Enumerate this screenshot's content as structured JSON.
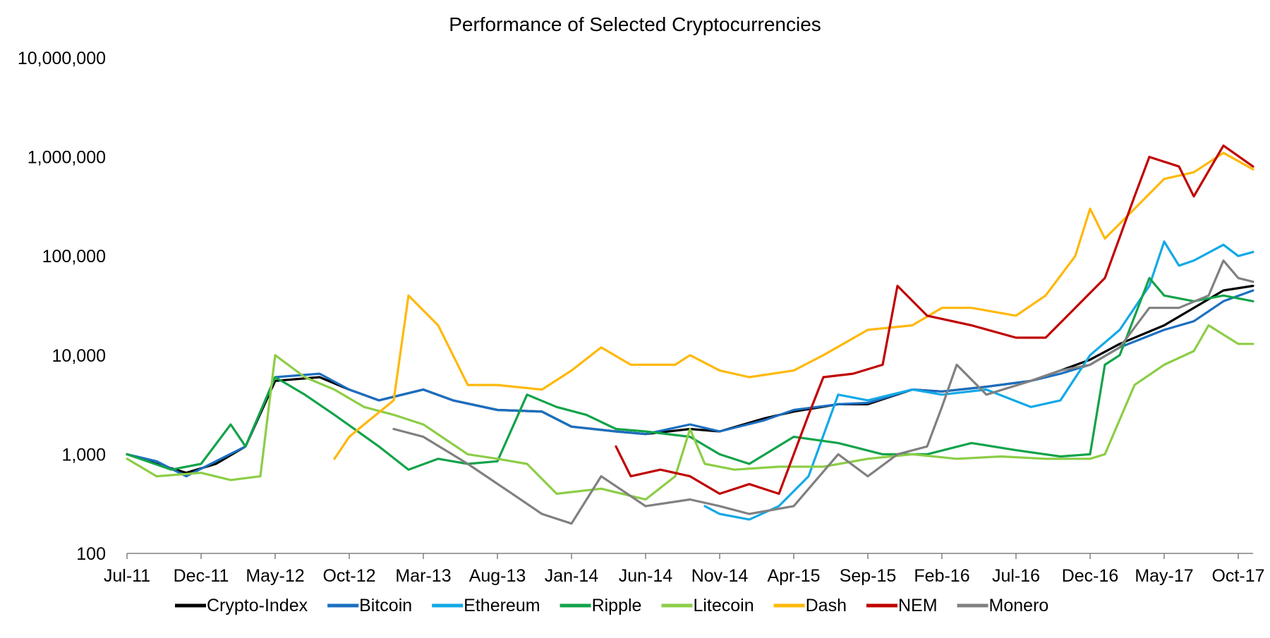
{
  "chart_data": {
    "type": "line",
    "title": "Performance of Selected Cryptocurrencies",
    "xlabel": "",
    "ylabel": "",
    "y_scale": "log",
    "ylim": [
      100,
      10000000
    ],
    "y_ticks": [
      {
        "value": 100,
        "label": "100"
      },
      {
        "value": 1000,
        "label": "1,000"
      },
      {
        "value": 10000,
        "label": "10,000"
      },
      {
        "value": 100000,
        "label": "100,000"
      },
      {
        "value": 1000000,
        "label": "1,000,000"
      },
      {
        "value": 10000000,
        "label": "10,000,000"
      }
    ],
    "xlim": [
      "2011-07",
      "2017-11"
    ],
    "x_ticks": [
      {
        "value": "2011-07",
        "label": "Jul-11"
      },
      {
        "value": "2011-12",
        "label": "Dec-11"
      },
      {
        "value": "2012-05",
        "label": "May-12"
      },
      {
        "value": "2012-10",
        "label": "Oct-12"
      },
      {
        "value": "2013-03",
        "label": "Mar-13"
      },
      {
        "value": "2013-08",
        "label": "Aug-13"
      },
      {
        "value": "2014-01",
        "label": "Jan-14"
      },
      {
        "value": "2014-06",
        "label": "Jun-14"
      },
      {
        "value": "2014-11",
        "label": "Nov-14"
      },
      {
        "value": "2015-04",
        "label": "Apr-15"
      },
      {
        "value": "2015-09",
        "label": "Sep-15"
      },
      {
        "value": "2016-02",
        "label": "Feb-16"
      },
      {
        "value": "2016-07",
        "label": "Jul-16"
      },
      {
        "value": "2016-12",
        "label": "Dec-16"
      },
      {
        "value": "2017-05",
        "label": "May-17"
      },
      {
        "value": "2017-10",
        "label": "Oct-17"
      }
    ],
    "grid": false,
    "legend_position": "bottom",
    "series": [
      {
        "name": "Crypto-Index",
        "color": "#000000",
        "points": [
          [
            "2011-07",
            1000
          ],
          [
            "2011-09",
            800
          ],
          [
            "2011-11",
            650
          ],
          [
            "2012-01",
            800
          ],
          [
            "2012-03",
            1200
          ],
          [
            "2012-05",
            5500
          ],
          [
            "2012-08",
            6000
          ],
          [
            "2012-10",
            4500
          ],
          [
            "2012-12",
            3500
          ],
          [
            "2013-03",
            4500
          ],
          [
            "2013-05",
            3500
          ],
          [
            "2013-08",
            2800
          ],
          [
            "2013-11",
            2700
          ],
          [
            "2014-01",
            1900
          ],
          [
            "2014-04",
            1700
          ],
          [
            "2014-06",
            1600
          ],
          [
            "2014-09",
            1800
          ],
          [
            "2014-11",
            1700
          ],
          [
            "2015-02",
            2300
          ],
          [
            "2015-04",
            2700
          ],
          [
            "2015-07",
            3200
          ],
          [
            "2015-09",
            3200
          ],
          [
            "2015-12",
            4500
          ],
          [
            "2016-02",
            4300
          ],
          [
            "2016-05",
            4800
          ],
          [
            "2016-08",
            5500
          ],
          [
            "2016-10",
            7000
          ],
          [
            "2016-12",
            9000
          ],
          [
            "2017-02",
            13000
          ],
          [
            "2017-05",
            20000
          ],
          [
            "2017-07",
            30000
          ],
          [
            "2017-09",
            45000
          ],
          [
            "2017-11",
            50000
          ]
        ]
      },
      {
        "name": "Bitcoin",
        "color": "#1b6fc0",
        "points": [
          [
            "2011-07",
            1000
          ],
          [
            "2011-09",
            850
          ],
          [
            "2011-11",
            600
          ],
          [
            "2012-01",
            850
          ],
          [
            "2012-03",
            1200
          ],
          [
            "2012-05",
            6000
          ],
          [
            "2012-08",
            6500
          ],
          [
            "2012-10",
            4500
          ],
          [
            "2012-12",
            3500
          ],
          [
            "2013-03",
            4500
          ],
          [
            "2013-05",
            3500
          ],
          [
            "2013-08",
            2800
          ],
          [
            "2013-11",
            2700
          ],
          [
            "2014-01",
            1900
          ],
          [
            "2014-04",
            1700
          ],
          [
            "2014-06",
            1600
          ],
          [
            "2014-09",
            2000
          ],
          [
            "2014-11",
            1700
          ],
          [
            "2015-02",
            2200
          ],
          [
            "2015-04",
            2800
          ],
          [
            "2015-07",
            3200
          ],
          [
            "2015-09",
            3300
          ],
          [
            "2015-12",
            4500
          ],
          [
            "2016-02",
            4300
          ],
          [
            "2016-05",
            4800
          ],
          [
            "2016-08",
            5500
          ],
          [
            "2016-10",
            6500
          ],
          [
            "2016-12",
            8000
          ],
          [
            "2017-02",
            12000
          ],
          [
            "2017-05",
            18000
          ],
          [
            "2017-07",
            22000
          ],
          [
            "2017-09",
            35000
          ],
          [
            "2017-11",
            45000
          ]
        ]
      },
      {
        "name": "Ethereum",
        "color": "#13a9e6",
        "points": [
          [
            "2014-10",
            300
          ],
          [
            "2014-11",
            250
          ],
          [
            "2015-01",
            220
          ],
          [
            "2015-03",
            300
          ],
          [
            "2015-05",
            600
          ],
          [
            "2015-07",
            4000
          ],
          [
            "2015-09",
            3500
          ],
          [
            "2015-12",
            4500
          ],
          [
            "2016-02",
            4000
          ],
          [
            "2016-05",
            4500
          ],
          [
            "2016-08",
            3000
          ],
          [
            "2016-10",
            3500
          ],
          [
            "2016-12",
            10000
          ],
          [
            "2017-02",
            18000
          ],
          [
            "2017-04",
            50000
          ],
          [
            "2017-05",
            140000
          ],
          [
            "2017-06",
            80000
          ],
          [
            "2017-07",
            90000
          ],
          [
            "2017-09",
            130000
          ],
          [
            "2017-10",
            100000
          ],
          [
            "2017-11",
            110000
          ]
        ]
      },
      {
        "name": "Ripple",
        "color": "#12a34a",
        "points": [
          [
            "2011-07",
            1000
          ],
          [
            "2011-10",
            700
          ],
          [
            "2011-12",
            800
          ],
          [
            "2012-02",
            2000
          ],
          [
            "2012-03",
            1200
          ],
          [
            "2012-05",
            6000
          ],
          [
            "2012-07",
            4000
          ],
          [
            "2012-09",
            2500
          ],
          [
            "2012-12",
            1200
          ],
          [
            "2013-02",
            700
          ],
          [
            "2013-04",
            900
          ],
          [
            "2013-06",
            800
          ],
          [
            "2013-08",
            850
          ],
          [
            "2013-10",
            4000
          ],
          [
            "2013-12",
            3000
          ],
          [
            "2014-02",
            2500
          ],
          [
            "2014-04",
            1800
          ],
          [
            "2014-06",
            1700
          ],
          [
            "2014-09",
            1500
          ],
          [
            "2014-11",
            1000
          ],
          [
            "2015-01",
            800
          ],
          [
            "2015-04",
            1500
          ],
          [
            "2015-07",
            1300
          ],
          [
            "2015-10",
            1000
          ],
          [
            "2016-01",
            1000
          ],
          [
            "2016-04",
            1300
          ],
          [
            "2016-07",
            1100
          ],
          [
            "2016-10",
            950
          ],
          [
            "2016-12",
            1000
          ],
          [
            "2017-01",
            8000
          ],
          [
            "2017-02",
            10000
          ],
          [
            "2017-04",
            60000
          ],
          [
            "2017-05",
            40000
          ],
          [
            "2017-07",
            35000
          ],
          [
            "2017-09",
            40000
          ],
          [
            "2017-11",
            35000
          ]
        ]
      },
      {
        "name": "Litecoin",
        "color": "#8ccd46",
        "points": [
          [
            "2011-07",
            900
          ],
          [
            "2011-09",
            600
          ],
          [
            "2011-12",
            650
          ],
          [
            "2012-02",
            550
          ],
          [
            "2012-04",
            600
          ],
          [
            "2012-05",
            10000
          ],
          [
            "2012-07",
            6000
          ],
          [
            "2012-09",
            4500
          ],
          [
            "2012-11",
            3000
          ],
          [
            "2013-01",
            2500
          ],
          [
            "2013-03",
            2000
          ],
          [
            "2013-06",
            1000
          ],
          [
            "2013-08",
            900
          ],
          [
            "2013-10",
            800
          ],
          [
            "2013-12",
            400
          ],
          [
            "2014-03",
            450
          ],
          [
            "2014-06",
            350
          ],
          [
            "2014-08",
            600
          ],
          [
            "2014-09",
            1800
          ],
          [
            "2014-10",
            800
          ],
          [
            "2014-12",
            700
          ],
          [
            "2015-03",
            750
          ],
          [
            "2015-06",
            750
          ],
          [
            "2015-09",
            900
          ],
          [
            "2015-12",
            1000
          ],
          [
            "2016-03",
            900
          ],
          [
            "2016-06",
            950
          ],
          [
            "2016-09",
            900
          ],
          [
            "2016-12",
            900
          ],
          [
            "2017-01",
            1000
          ],
          [
            "2017-03",
            5000
          ],
          [
            "2017-05",
            8000
          ],
          [
            "2017-07",
            11000
          ],
          [
            "2017-08",
            20000
          ],
          [
            "2017-10",
            13000
          ],
          [
            "2017-11",
            13000
          ]
        ]
      },
      {
        "name": "Dash",
        "color": "#ffb80a",
        "points": [
          [
            "2012-09",
            900
          ],
          [
            "2012-10",
            1500
          ],
          [
            "2012-11",
            2000
          ],
          [
            "2013-01",
            3500
          ],
          [
            "2013-02",
            40000
          ],
          [
            "2013-04",
            20000
          ],
          [
            "2013-06",
            5000
          ],
          [
            "2013-08",
            5000
          ],
          [
            "2013-11",
            4500
          ],
          [
            "2014-01",
            7000
          ],
          [
            "2014-03",
            12000
          ],
          [
            "2014-05",
            8000
          ],
          [
            "2014-08",
            8000
          ],
          [
            "2014-09",
            10000
          ],
          [
            "2014-11",
            7000
          ],
          [
            "2015-01",
            6000
          ],
          [
            "2015-04",
            7000
          ],
          [
            "2015-06",
            10000
          ],
          [
            "2015-09",
            18000
          ],
          [
            "2015-12",
            20000
          ],
          [
            "2016-02",
            30000
          ],
          [
            "2016-04",
            30000
          ],
          [
            "2016-07",
            25000
          ],
          [
            "2016-09",
            40000
          ],
          [
            "2016-11",
            100000
          ],
          [
            "2016-12",
            300000
          ],
          [
            "2017-01",
            150000
          ],
          [
            "2017-03",
            300000
          ],
          [
            "2017-05",
            600000
          ],
          [
            "2017-07",
            700000
          ],
          [
            "2017-09",
            1100000
          ],
          [
            "2017-11",
            750000
          ]
        ]
      },
      {
        "name": "NEM",
        "color": "#c00000",
        "points": [
          [
            "2014-04",
            1200
          ],
          [
            "2014-05",
            600
          ],
          [
            "2014-07",
            700
          ],
          [
            "2014-09",
            600
          ],
          [
            "2014-11",
            400
          ],
          [
            "2015-01",
            500
          ],
          [
            "2015-03",
            400
          ],
          [
            "2015-05",
            2500
          ],
          [
            "2015-06",
            6000
          ],
          [
            "2015-08",
            6500
          ],
          [
            "2015-10",
            8000
          ],
          [
            "2015-11",
            50000
          ],
          [
            "2016-01",
            25000
          ],
          [
            "2016-04",
            20000
          ],
          [
            "2016-07",
            15000
          ],
          [
            "2016-09",
            15000
          ],
          [
            "2016-11",
            30000
          ],
          [
            "2017-01",
            60000
          ],
          [
            "2017-03",
            400000
          ],
          [
            "2017-04",
            1000000
          ],
          [
            "2017-06",
            800000
          ],
          [
            "2017-07",
            400000
          ],
          [
            "2017-09",
            1300000
          ],
          [
            "2017-11",
            800000
          ]
        ]
      },
      {
        "name": "Monero",
        "color": "#808080",
        "points": [
          [
            "2013-01",
            1800
          ],
          [
            "2013-03",
            1500
          ],
          [
            "2013-06",
            800
          ],
          [
            "2013-09",
            400
          ],
          [
            "2013-11",
            250
          ],
          [
            "2014-01",
            200
          ],
          [
            "2014-03",
            600
          ],
          [
            "2014-06",
            300
          ],
          [
            "2014-09",
            350
          ],
          [
            "2014-11",
            300
          ],
          [
            "2015-01",
            250
          ],
          [
            "2015-04",
            300
          ],
          [
            "2015-07",
            1000
          ],
          [
            "2015-09",
            600
          ],
          [
            "2015-11",
            1000
          ],
          [
            "2016-01",
            1200
          ],
          [
            "2016-02",
            3000
          ],
          [
            "2016-03",
            8000
          ],
          [
            "2016-05",
            4000
          ],
          [
            "2016-08",
            5500
          ],
          [
            "2016-10",
            7000
          ],
          [
            "2016-12",
            8000
          ],
          [
            "2017-02",
            12000
          ],
          [
            "2017-04",
            30000
          ],
          [
            "2017-06",
            30000
          ],
          [
            "2017-08",
            40000
          ],
          [
            "2017-09",
            90000
          ],
          [
            "2017-10",
            60000
          ],
          [
            "2017-11",
            55000
          ]
        ]
      }
    ]
  }
}
